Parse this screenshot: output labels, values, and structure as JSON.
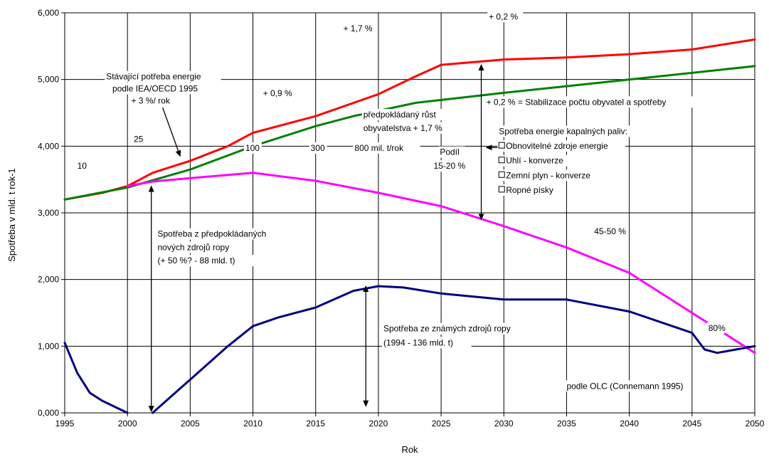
{
  "chart_data": {
    "type": "line",
    "title": "",
    "xlabel": "Rok",
    "ylabel": "Spotřeba v mld. t rok-1",
    "xlim": [
      1995,
      2050
    ],
    "ylim": [
      0,
      6000
    ],
    "x_ticks": [
      "1995",
      "2000",
      "2005",
      "2010",
      "2015",
      "2020",
      "2025",
      "2030",
      "2035",
      "2040",
      "2045",
      "2050"
    ],
    "y_ticks": [
      "0,000",
      "1,000",
      "2,000",
      "3,000",
      "4,000",
      "5,000",
      "6,000"
    ],
    "grid": true,
    "legend": "none",
    "series": [
      {
        "color": "#ff0000",
        "points": [
          [
            1995,
            3200
          ],
          [
            1998,
            3300
          ],
          [
            2000,
            3400
          ],
          [
            2002,
            3600
          ],
          [
            2005,
            3780
          ],
          [
            2008,
            4000
          ],
          [
            2010,
            4200
          ],
          [
            2015,
            4450
          ],
          [
            2020,
            4780
          ],
          [
            2023,
            5050
          ],
          [
            2025,
            5220
          ],
          [
            2030,
            5300
          ],
          [
            2035,
            5330
          ],
          [
            2040,
            5380
          ],
          [
            2045,
            5450
          ],
          [
            2050,
            5600
          ]
        ]
      },
      {
        "color": "#008000",
        "points": [
          [
            1995,
            3200
          ],
          [
            2000,
            3380
          ],
          [
            2005,
            3650
          ],
          [
            2010,
            4000
          ],
          [
            2015,
            4300
          ],
          [
            2018,
            4450
          ],
          [
            2023,
            4650
          ],
          [
            2030,
            4800
          ],
          [
            2040,
            5000
          ],
          [
            2050,
            5200
          ]
        ]
      },
      {
        "color": "#ff00ff",
        "points": [
          [
            2000,
            3400
          ],
          [
            2002,
            3470
          ],
          [
            2005,
            3520
          ],
          [
            2010,
            3600
          ],
          [
            2015,
            3480
          ],
          [
            2020,
            3300
          ],
          [
            2025,
            3100
          ],
          [
            2030,
            2800
          ],
          [
            2035,
            2480
          ],
          [
            2040,
            2100
          ],
          [
            2045,
            1500
          ],
          [
            2050,
            900
          ]
        ]
      },
      {
        "color": "#000080",
        "points": [
          [
            1995,
            1050
          ],
          [
            1996,
            600
          ],
          [
            1997,
            300
          ],
          [
            1998,
            180
          ],
          [
            2000,
            0
          ]
        ]
      },
      {
        "color": "#000080",
        "points": [
          [
            2002,
            0
          ],
          [
            2005,
            500
          ],
          [
            2008,
            1000
          ],
          [
            2010,
            1300
          ],
          [
            2012,
            1430
          ],
          [
            2015,
            1580
          ],
          [
            2018,
            1830
          ],
          [
            2020,
            1900
          ],
          [
            2022,
            1880
          ],
          [
            2025,
            1790
          ],
          [
            2030,
            1700
          ],
          [
            2035,
            1700
          ],
          [
            2040,
            1520
          ],
          [
            2045,
            1200
          ],
          [
            2046,
            950
          ],
          [
            2047,
            900
          ],
          [
            2050,
            1000
          ]
        ]
      }
    ],
    "annotations": [
      {
        "id": "a1",
        "text": "Stávající potřeba energie",
        "x": 1998.3,
        "y": 5000
      },
      {
        "id": "a2",
        "text": "podle IEA/OECD 1995",
        "x": 1998.8,
        "y": 4820
      },
      {
        "id": "a3",
        "text": "+ 3 %/ rok",
        "x": 2000.3,
        "y": 4640
      },
      {
        "id": "a4",
        "text": "+ 0,9 %",
        "x": 2010.8,
        "y": 4750
      },
      {
        "id": "a5",
        "text": "+ 1,7 %",
        "x": 2017.2,
        "y": 5720
      },
      {
        "id": "a6",
        "text": "+ 0,2 %",
        "x": 2028.8,
        "y": 5900
      },
      {
        "id": "a7",
        "text": "předpokládaný růst",
        "x": 2018.8,
        "y": 4430
      },
      {
        "id": "a8",
        "text": "obyvatelstva + 1,7 %",
        "x": 2018.8,
        "y": 4230
      },
      {
        "id": "a9",
        "text": "+ 0,2 % = Stabilizace počtu obyvatel a spotřeby",
        "x": 2028.6,
        "y": 4620
      },
      {
        "id": "a10",
        "text": "Spotřeba energie kapalných paliv:",
        "x": 2029.6,
        "y": 4180
      },
      {
        "id": "a11",
        "text": "Obnovitelné zdroje energie",
        "x": 2029.6,
        "y": 3960,
        "box": true
      },
      {
        "id": "a12",
        "text": "Uhlí - konverze",
        "x": 2029.6,
        "y": 3740,
        "box": true
      },
      {
        "id": "a13",
        "text": "Zemní plyn - konverze",
        "x": 2029.6,
        "y": 3520,
        "box": true
      },
      {
        "id": "a14",
        "text": "Ropné písky",
        "x": 2029.6,
        "y": 3300,
        "box": true
      },
      {
        "id": "a15",
        "text": "10",
        "x": 1996,
        "y": 3660
      },
      {
        "id": "a16",
        "text": "25",
        "x": 2000.5,
        "y": 4060
      },
      {
        "id": "a17",
        "text": "100",
        "x": 2009.4,
        "y": 3930
      },
      {
        "id": "a18",
        "text": "300",
        "x": 2014.6,
        "y": 3930
      },
      {
        "id": "a19",
        "text": "800 mil. t/rok",
        "x": 2018.1,
        "y": 3930
      },
      {
        "id": "a20",
        "text": "Podíl",
        "x": 2024.9,
        "y": 3870
      },
      {
        "id": "a21",
        "text": "15-20 %",
        "x": 2024.4,
        "y": 3660
      },
      {
        "id": "a22",
        "text": "Spotřeba z předpokládaných",
        "x": 2002.4,
        "y": 2640
      },
      {
        "id": "a23",
        "text": "nových zdrojů ropy",
        "x": 2002.4,
        "y": 2440
      },
      {
        "id": "a24",
        "text": "(+ 50 %? - 88 mld. t)",
        "x": 2002.4,
        "y": 2240
      },
      {
        "id": "a25",
        "text": "45-50 %",
        "x": 2037.2,
        "y": 2680
      },
      {
        "id": "a26",
        "text": "80%",
        "x": 2046.3,
        "y": 1230
      },
      {
        "id": "a27",
        "text": "Spotřeba ze známých zdrojů ropy",
        "x": 2020.4,
        "y": 1220
      },
      {
        "id": "a28",
        "text": "(1994 - 136 mld. t)",
        "x": 2020.4,
        "y": 1010
      },
      {
        "id": "a29",
        "text": "podle OLC  (Connemann 1995)",
        "x": 2035,
        "y": 360
      }
    ],
    "arrows": [
      {
        "from": [
          2001.9,
          3400
        ],
        "to": [
          2001.9,
          20
        ],
        "double": true
      },
      {
        "from": [
          2019,
          1900
        ],
        "to": [
          2019,
          100
        ],
        "double": true
      },
      {
        "from": [
          2028.2,
          5220
        ],
        "to": [
          2028.2,
          2900
        ],
        "double": true
      },
      {
        "from": [
          2034.5,
          3980
        ],
        "to": [
          2028.6,
          3980
        ],
        "double": false
      },
      {
        "from": [
          2002.8,
          4580
        ],
        "to": [
          2004.2,
          3850
        ],
        "double": false
      }
    ]
  }
}
